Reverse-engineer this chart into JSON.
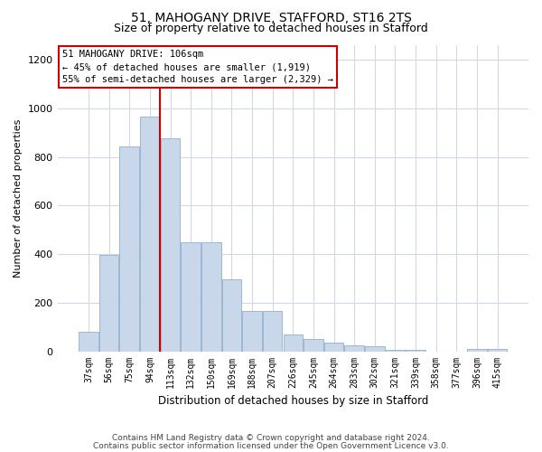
{
  "title1": "51, MAHOGANY DRIVE, STAFFORD, ST16 2TS",
  "title2": "Size of property relative to detached houses in Stafford",
  "xlabel": "Distribution of detached houses by size in Stafford",
  "ylabel": "Number of detached properties",
  "categories": [
    "37sqm",
    "56sqm",
    "75sqm",
    "94sqm",
    "113sqm",
    "132sqm",
    "150sqm",
    "169sqm",
    "188sqm",
    "207sqm",
    "226sqm",
    "245sqm",
    "264sqm",
    "283sqm",
    "302sqm",
    "321sqm",
    "339sqm",
    "358sqm",
    "377sqm",
    "396sqm",
    "415sqm"
  ],
  "values": [
    80,
    395,
    845,
    965,
    875,
    450,
    450,
    295,
    165,
    165,
    70,
    50,
    35,
    25,
    20,
    5,
    5,
    0,
    0,
    10,
    10
  ],
  "bar_color": "#c8d8ea",
  "bar_edge_color": "#9ab8d0",
  "vline_x": 3.5,
  "vline_color": "#cc0000",
  "annotation_text": "51 MAHOGANY DRIVE: 106sqm\n← 45% of detached houses are smaller (1,919)\n55% of semi-detached houses are larger (2,329) →",
  "annotation_box_color": "#ffffff",
  "annotation_box_edge": "#cc0000",
  "footer1": "Contains HM Land Registry data © Crown copyright and database right 2024.",
  "footer2": "Contains public sector information licensed under the Open Government Licence v3.0.",
  "bg_color": "#ffffff",
  "plot_bg_color": "#ffffff",
  "ylim": [
    0,
    1260
  ],
  "yticks": [
    0,
    200,
    400,
    600,
    800,
    1000,
    1200
  ],
  "grid_color": "#d0dae4"
}
